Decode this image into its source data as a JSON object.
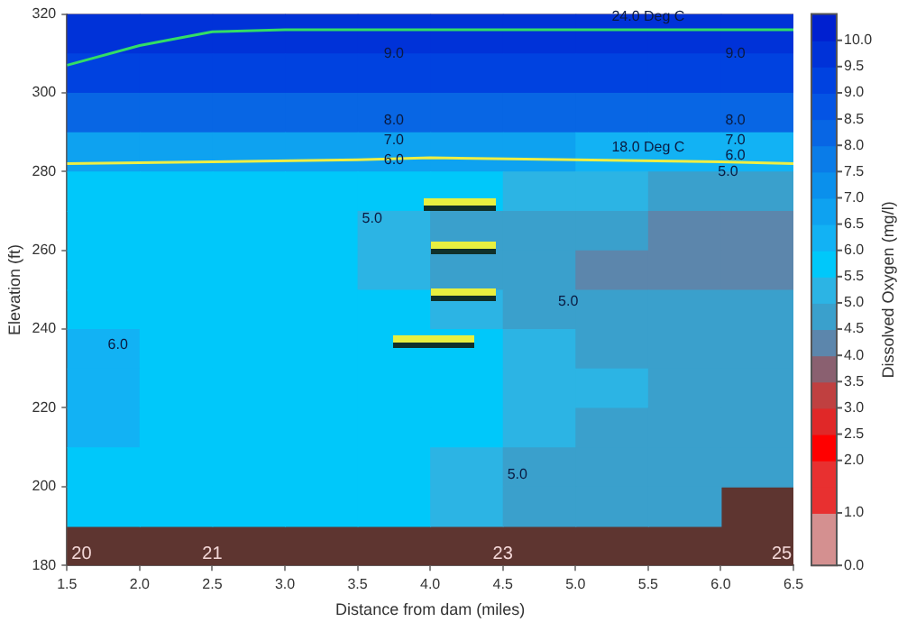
{
  "chart_data": {
    "type": "heatmap",
    "xlabel": "Distance from dam (miles)",
    "ylabel": "Elevation (ft)",
    "clabel": "Dissolved Oxygen (mg/l)",
    "x": [
      1.75,
      2.25,
      2.75,
      3.25,
      3.75,
      4.25,
      4.75,
      5.25,
      5.75,
      6.25
    ],
    "y": [
      315,
      305,
      295,
      285,
      275,
      265,
      255,
      245,
      235,
      225,
      215,
      205,
      195
    ],
    "cells": [
      [
        9.6,
        9.6,
        9.5,
        9.5,
        9.5,
        9.5,
        9.5,
        9.5,
        9.5,
        9.5
      ],
      [
        9.0,
        9.1,
        9.1,
        9.1,
        9.1,
        9.1,
        9.0,
        9.0,
        9.0,
        9.0
      ],
      [
        8.2,
        8.3,
        8.3,
        8.3,
        8.3,
        8.3,
        8.2,
        8.2,
        8.1,
        8.1
      ],
      [
        6.6,
        6.6,
        6.6,
        6.6,
        6.7,
        6.6,
        6.5,
        6.4,
        6.2,
        6.1
      ],
      [
        5.8,
        5.8,
        5.8,
        5.7,
        5.6,
        5.5,
        5.3,
        5.1,
        4.9,
        4.7
      ],
      [
        5.7,
        5.7,
        5.7,
        5.5,
        5.0,
        4.8,
        4.7,
        4.6,
        4.4,
        4.3
      ],
      [
        5.7,
        5.7,
        5.7,
        5.6,
        5.1,
        4.8,
        4.6,
        4.4,
        4.3,
        4.3
      ],
      [
        5.8,
        5.7,
        5.7,
        5.6,
        5.5,
        5.1,
        4.8,
        4.7,
        4.6,
        4.6
      ],
      [
        6.1,
        5.8,
        5.7,
        5.7,
        5.7,
        5.5,
        5.2,
        4.9,
        4.7,
        4.7
      ],
      [
        6.1,
        5.9,
        5.7,
        5.7,
        5.7,
        5.6,
        5.3,
        5.0,
        4.7,
        4.7
      ],
      [
        6.0,
        5.7,
        5.7,
        5.7,
        5.6,
        5.5,
        5.2,
        4.8,
        4.7,
        4.7
      ],
      [
        5.7,
        5.6,
        5.6,
        5.6,
        5.6,
        5.3,
        4.9,
        4.7,
        4.7,
        4.7
      ],
      [
        5.6,
        5.6,
        5.6,
        5.6,
        5.5,
        5.1,
        4.8,
        4.7,
        4.7,
        null
      ]
    ],
    "colors": [
      "#d49090",
      "#d49090",
      "#e83030",
      "#e83030",
      "#ff0000",
      "#e02828",
      "#c04040",
      "#8a6070",
      "#5c86ac",
      "#3aa0cc",
      "#2cb4e4",
      "#00c8fa",
      "#12b2f4",
      "#0ea2f0",
      "#0a90ec",
      "#0a7ce8",
      "#0866e4",
      "#0454e4",
      "#0042e0",
      "#0032d8",
      "#0020d0"
    ],
    "clim": [
      0,
      10.5
    ],
    "cticks": [
      {
        "value": 0,
        "label": "0.0"
      },
      {
        "value": 1,
        "label": "1.0"
      },
      {
        "value": 2,
        "label": "2.0"
      },
      {
        "value": 2.5,
        "label": "2.5"
      },
      {
        "value": 3,
        "label": "3.0"
      },
      {
        "value": 3.5,
        "label": "3.5"
      },
      {
        "value": 4,
        "label": "4.0"
      },
      {
        "value": 4.5,
        "label": "4.5"
      },
      {
        "value": 5,
        "label": "5.0"
      },
      {
        "value": 5.5,
        "label": "5.5"
      },
      {
        "value": 6,
        "label": "6.0"
      },
      {
        "value": 6.5,
        "label": "6.5"
      },
      {
        "value": 7,
        "label": "7.0"
      },
      {
        "value": 7.5,
        "label": "7.5"
      },
      {
        "value": 8,
        "label": "8.0"
      },
      {
        "value": 8.5,
        "label": "8.5"
      },
      {
        "value": 9,
        "label": "9.0"
      },
      {
        "value": 9.5,
        "label": "9.5"
      },
      {
        "value": 10,
        "label": "10.0"
      }
    ],
    "series": [
      {
        "type": "line",
        "name": "24.0 Deg C",
        "color": "#33dd66",
        "x": [
          1.5,
          2.0,
          2.5,
          3.0,
          4.0,
          5.0,
          6.0,
          6.5
        ],
        "values": [
          307,
          312,
          315.5,
          316,
          316,
          316,
          316,
          316
        ]
      },
      {
        "type": "line",
        "name": "18.0 Deg C",
        "color": "#eeee44",
        "x": [
          1.5,
          2.5,
          3.5,
          4.0,
          5.0,
          6.0,
          6.5
        ],
        "values": [
          282,
          282.5,
          283,
          283.5,
          283,
          282.5,
          282
        ]
      }
    ],
    "xlim": [
      1.5,
      6.5
    ],
    "xticks": [
      {
        "value": 1.5,
        "label": "1.5"
      },
      {
        "value": 2,
        "label": "2.0"
      },
      {
        "value": 2.5,
        "label": "2.5"
      },
      {
        "value": 3,
        "label": "3.0"
      },
      {
        "value": 3.5,
        "label": "3.5"
      },
      {
        "value": 4,
        "label": "4.0"
      },
      {
        "value": 4.5,
        "label": "4.5"
      },
      {
        "value": 5,
        "label": "5.0"
      },
      {
        "value": 5.5,
        "label": "5.5"
      },
      {
        "value": 6,
        "label": "6.0"
      },
      {
        "value": 6.5,
        "label": "6.5"
      }
    ],
    "ylim": [
      180,
      320
    ],
    "yticks": [
      180,
      200,
      220,
      240,
      260,
      280,
      300,
      320
    ],
    "annotations": [
      "9.0",
      "9.0",
      "8.0",
      "8.0",
      "7.0",
      "7.0",
      "6.0",
      "6.0",
      "5.0",
      "5.0",
      "5.0",
      "5.0",
      "6.0",
      "20",
      "21",
      "23",
      "25"
    ],
    "grid": false,
    "legend": false
  }
}
